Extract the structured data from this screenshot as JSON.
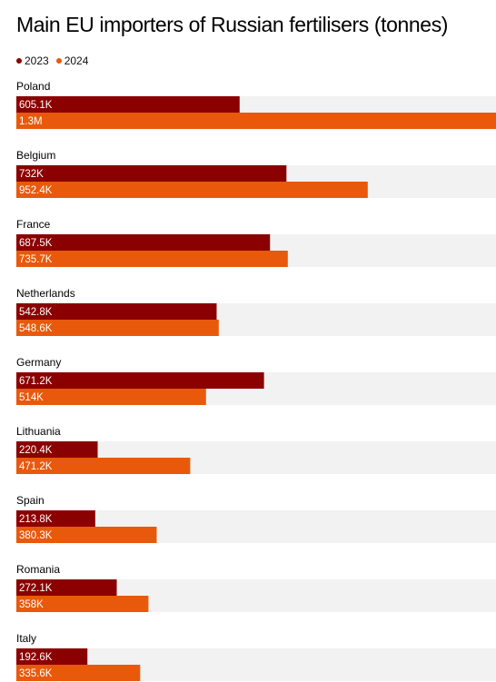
{
  "chart_data": {
    "type": "bar",
    "orientation": "horizontal",
    "title": "Main EU importers of Russian fertilisers (tonnes)",
    "xlabel": "",
    "ylabel": "",
    "xlim": [
      0,
      1300000
    ],
    "grid": false,
    "legend_position": "top-left",
    "categories": [
      "Poland",
      "Belgium",
      "France",
      "Netherlands",
      "Germany",
      "Lithuania",
      "Spain",
      "Romania",
      "Italy"
    ],
    "series": [
      {
        "name": "2023",
        "color": "#8b0000",
        "values": [
          605100,
          732000,
          687500,
          542800,
          671200,
          220400,
          213800,
          272100,
          192600
        ],
        "labels": [
          "605.1K",
          "732K",
          "687.5K",
          "542.8K",
          "671.2K",
          "220.4K",
          "213.8K",
          "272.1K",
          "192.6K"
        ]
      },
      {
        "name": "2024",
        "color": "#e8590c",
        "values": [
          1300000,
          952400,
          735700,
          548600,
          514000,
          471200,
          380300,
          358000,
          335600
        ],
        "labels": [
          "1.3M",
          "952.4K",
          "735.7K",
          "548.6K",
          "514K",
          "471.2K",
          "380.3K",
          "358K",
          "335.6K"
        ]
      }
    ],
    "track_color": "#f2f2f2",
    "label_color": "#ffffff"
  }
}
